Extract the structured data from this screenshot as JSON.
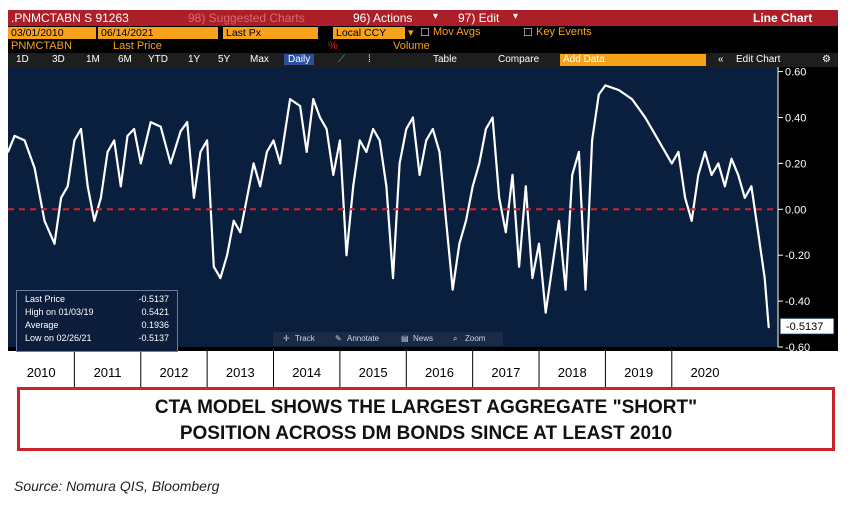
{
  "header": {
    "ticker": ".PNMCTABN S 91263",
    "suggested": "98) Suggested Charts",
    "actions": "96) Actions",
    "edit": "97) Edit",
    "title": "Line Chart",
    "start_date": "03/01/2010",
    "end_date": "06/14/2021",
    "price_field": "Last Px",
    "currency": "Local CCY",
    "mov_avgs": "Mov Avgs",
    "key_events": "Key Events",
    "security_label": "PNMCTABN",
    "last_price_label": "Last Price",
    "pct_label": "%",
    "volume_label": "Volume"
  },
  "toolbar": {
    "ranges": [
      "1D",
      "3D",
      "1M",
      "6M",
      "YTD",
      "1Y",
      "5Y",
      "Max"
    ],
    "period": "Daily",
    "table": "Table",
    "compare": "Compare",
    "add_data": "Add Data",
    "edit_chart": "Edit Chart"
  },
  "legend": {
    "rows": [
      {
        "label": "Last Price",
        "value": "-0.5137"
      },
      {
        "label": "High on 01/03/19",
        "value": "0.5421"
      },
      {
        "label": "Average",
        "value": "0.1936"
      },
      {
        "label": "Low on 02/26/21",
        "value": "-0.5137"
      }
    ]
  },
  "chart_tools": {
    "track": "Track",
    "annotate": "Annotate",
    "news": "News",
    "zoom": "Zoom"
  },
  "last_value_tag": "-0.5137",
  "colors": {
    "plot_bg": "#0a1e3e",
    "line": "#ffffff",
    "zero_line": "#d3232a",
    "header_red": "#ad1f28",
    "orange": "#f7a21b"
  },
  "chart_data": {
    "type": "area",
    "y_ticks": [
      "0.60",
      "0.40",
      "0.20",
      "0.00",
      "-0.20",
      "-0.40",
      "-0.60"
    ],
    "ylim": [
      -0.6,
      0.62
    ],
    "x_labels": [
      "2010",
      "2011",
      "2012",
      "2013",
      "2014",
      "2015",
      "2016",
      "2017",
      "2018",
      "2019",
      "2020"
    ],
    "xlim": [
      2010.0,
      2021.6
    ],
    "series": [
      {
        "x": [
          2010.0,
          2010.1,
          2010.25,
          2010.4,
          2010.55,
          2010.7,
          2010.8,
          2010.9,
          2011.0,
          2011.1,
          2011.2,
          2011.3,
          2011.4,
          2011.5,
          2011.6,
          2011.7,
          2011.8,
          2011.9,
          2012.0,
          2012.15,
          2012.3,
          2012.45,
          2012.6,
          2012.7,
          2012.8,
          2012.9,
          2013.0,
          2013.1,
          2013.2,
          2013.3,
          2013.4,
          2013.5,
          2013.6,
          2013.7,
          2013.8,
          2013.9,
          2014.0,
          2014.1,
          2014.25,
          2014.4,
          2014.5,
          2014.6,
          2014.7,
          2014.8,
          2014.9,
          2015.0,
          2015.1,
          2015.2,
          2015.3,
          2015.4,
          2015.5,
          2015.6,
          2015.7,
          2015.8,
          2015.9,
          2016.0,
          2016.1,
          2016.2,
          2016.3,
          2016.4,
          2016.5,
          2016.6,
          2016.7,
          2016.8,
          2016.9,
          2017.0,
          2017.1,
          2017.2,
          2017.3,
          2017.4,
          2017.5,
          2017.6,
          2017.7,
          2017.8,
          2017.9,
          2018.0,
          2018.1,
          2018.2,
          2018.3,
          2018.4,
          2018.5,
          2018.6,
          2018.7,
          2018.8,
          2018.9,
          2019.0,
          2019.2,
          2019.4,
          2019.6,
          2019.8,
          2020.0,
          2020.1,
          2020.2,
          2020.3,
          2020.4,
          2020.5,
          2020.6,
          2020.7,
          2020.8,
          2020.9,
          2021.0,
          2021.1,
          2021.2,
          2021.3,
          2021.4,
          2021.46
        ],
        "values": [
          0.25,
          0.32,
          0.3,
          0.18,
          -0.05,
          -0.15,
          0.05,
          0.1,
          0.3,
          0.35,
          0.1,
          -0.05,
          0.05,
          0.25,
          0.3,
          0.1,
          0.32,
          0.35,
          0.2,
          0.38,
          0.36,
          0.2,
          0.34,
          0.38,
          0.05,
          0.25,
          0.3,
          -0.25,
          -0.3,
          -0.2,
          -0.05,
          -0.1,
          0.05,
          0.2,
          0.1,
          0.25,
          0.3,
          0.2,
          0.48,
          0.45,
          0.25,
          0.48,
          0.4,
          0.35,
          0.15,
          0.3,
          -0.2,
          0.1,
          0.3,
          0.25,
          0.35,
          0.3,
          0.1,
          -0.3,
          0.2,
          0.35,
          0.4,
          0.15,
          0.3,
          0.35,
          0.25,
          -0.05,
          -0.35,
          -0.15,
          -0.05,
          0.1,
          0.2,
          0.35,
          0.4,
          0.05,
          -0.1,
          0.15,
          -0.25,
          0.1,
          -0.3,
          -0.15,
          -0.45,
          -0.25,
          -0.05,
          -0.35,
          0.15,
          0.25,
          -0.35,
          0.3,
          0.5,
          0.54,
          0.52,
          0.48,
          0.4,
          0.3,
          0.2,
          0.25,
          0.05,
          -0.05,
          0.15,
          0.25,
          0.15,
          0.2,
          0.1,
          0.22,
          0.15,
          0.05,
          0.1,
          -0.1,
          -0.3,
          -0.5137
        ]
      }
    ],
    "grid": false,
    "reference_line": 0.0
  },
  "caption": {
    "line1": "CTA MODEL SHOWS THE LARGEST AGGREGATE \"SHORT\"",
    "line2": "POSITION ACROSS DM BONDS SINCE AT LEAST 2010"
  },
  "source": "Source: Nomura QIS, Bloomberg"
}
